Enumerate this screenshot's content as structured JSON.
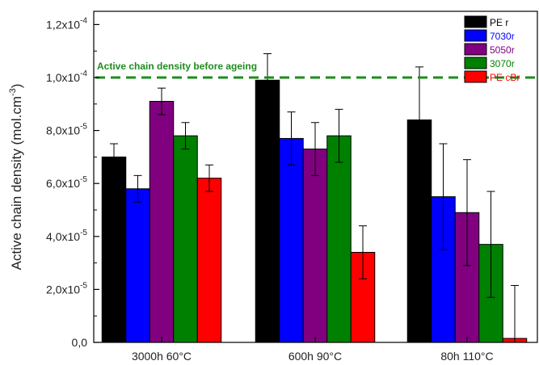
{
  "chart_data": {
    "type": "bar",
    "categories": [
      "3000h 60°C",
      "600h 90°C",
      "80h 110°C"
    ],
    "series": [
      {
        "name": "PE r",
        "color": "#000000",
        "values": [
          7e-05,
          9.9e-05,
          8.4e-05
        ],
        "errors": [
          5e-06,
          1e-05,
          2e-05
        ]
      },
      {
        "name": "7030r",
        "color": "#0000ff",
        "values": [
          5.8e-05,
          7.7e-05,
          5.5e-05
        ],
        "errors": [
          5e-06,
          1e-05,
          2e-05
        ]
      },
      {
        "name": "5050r",
        "color": "#800080",
        "values": [
          9.1e-05,
          7.3e-05,
          4.9e-05
        ],
        "errors": [
          5e-06,
          1e-05,
          2e-05
        ]
      },
      {
        "name": "3070r",
        "color": "#008000",
        "values": [
          7.8e-05,
          7.8e-05,
          3.7e-05
        ],
        "errors": [
          5e-06,
          1e-05,
          2e-05
        ]
      },
      {
        "name": "PE cBr",
        "color": "#ff0000",
        "values": [
          6.2e-05,
          3.4e-05,
          1.5e-06
        ],
        "errors": [
          5e-06,
          1e-05,
          2e-05
        ]
      }
    ],
    "ylabel": "Active chain density (mol.cm",
    "ylabel_sup": "-3",
    "ylabel_close": ")",
    "ylim": [
      0,
      0.000125
    ],
    "yticks": [
      {
        "value": 0,
        "mant": "0,0",
        "exp": ""
      },
      {
        "value": 2e-05,
        "mant": "2,0x10",
        "exp": "-5"
      },
      {
        "value": 4e-05,
        "mant": "4,0x10",
        "exp": "-5"
      },
      {
        "value": 6e-05,
        "mant": "6,0x10",
        "exp": "-5"
      },
      {
        "value": 8e-05,
        "mant": "8,0x10",
        "exp": "-5"
      },
      {
        "value": 0.0001,
        "mant": "1,0x10",
        "exp": "-4"
      },
      {
        "value": 0.00012,
        "mant": "1,2x10",
        "exp": "-4"
      }
    ],
    "reference_line": {
      "value": 0.0001,
      "label": "Active chain density before ageing",
      "color": "#1e8c1e"
    },
    "legend_position": "top-right",
    "grid": false
  }
}
